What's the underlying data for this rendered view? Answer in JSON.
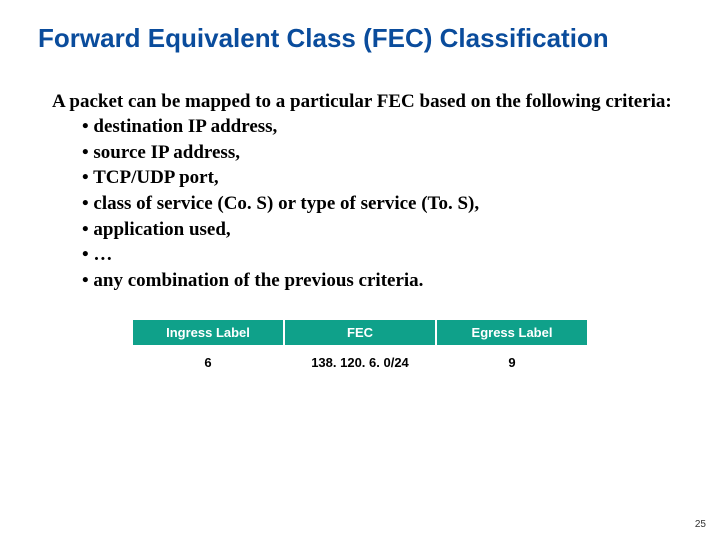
{
  "title": "Forward Equivalent Class (FEC) Classification",
  "intro": "A packet can be mapped to a particular FEC based on the following criteria:",
  "bullets": [
    "destination IP address,",
    "source IP address,",
    "TCP/UDP port,",
    "class of service (Co. S) or type of service (To. S),",
    "application used,",
    "…",
    "any combination of the previous criteria."
  ],
  "table": {
    "headers": [
      "Ingress Label",
      "FEC",
      "Egress Label"
    ],
    "row": [
      "6",
      "138. 120. 6. 0/24",
      "9"
    ],
    "header_bg": "#0fa18a",
    "header_fg": "#ffffff"
  },
  "page_number": "25",
  "colors": {
    "title": "#0a4c9c",
    "text": "#000000",
    "background": "#ffffff"
  }
}
